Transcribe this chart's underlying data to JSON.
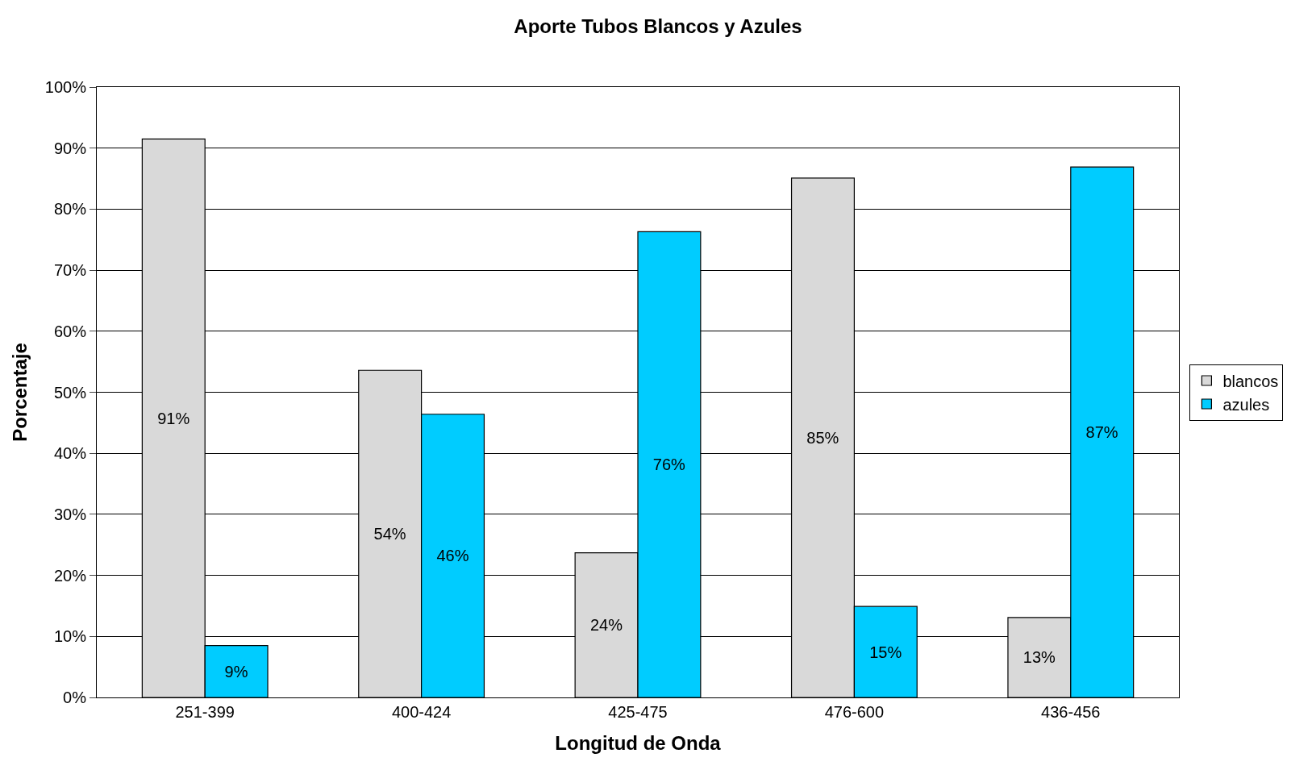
{
  "chart_data": {
    "type": "bar",
    "title": "Aporte Tubos Blancos y Azules",
    "xlabel": "Longitud de Onda",
    "ylabel": "Porcentaje",
    "categories": [
      "251-399",
      "400-424",
      "425-475",
      "476-600",
      "436-456"
    ],
    "series": [
      {
        "name": "blancos",
        "color": "#d9d9d9",
        "values": [
          91.5,
          53.6,
          23.7,
          85.1,
          13.1
        ],
        "value_labels": [
          "91%",
          "54%",
          "24%",
          "85%",
          "13%"
        ]
      },
      {
        "name": "azules",
        "color": "#00ccff",
        "values": [
          8.5,
          46.4,
          76.3,
          14.9,
          86.9
        ],
        "value_labels": [
          "9%",
          "46%",
          "76%",
          "15%",
          "87%"
        ]
      }
    ],
    "ylim": [
      0,
      100
    ],
    "yticks": [
      {
        "value": 0,
        "label": "0%"
      },
      {
        "value": 10,
        "label": "10%"
      },
      {
        "value": 20,
        "label": "20%"
      },
      {
        "value": 30,
        "label": "30%"
      },
      {
        "value": 40,
        "label": "40%"
      },
      {
        "value": 50,
        "label": "50%"
      },
      {
        "value": 60,
        "label": "60%"
      },
      {
        "value": 70,
        "label": "70%"
      },
      {
        "value": 80,
        "label": "80%"
      },
      {
        "value": 90,
        "label": "90%"
      },
      {
        "value": 100,
        "label": "100%"
      }
    ],
    "grid": "y",
    "legend": "right"
  }
}
